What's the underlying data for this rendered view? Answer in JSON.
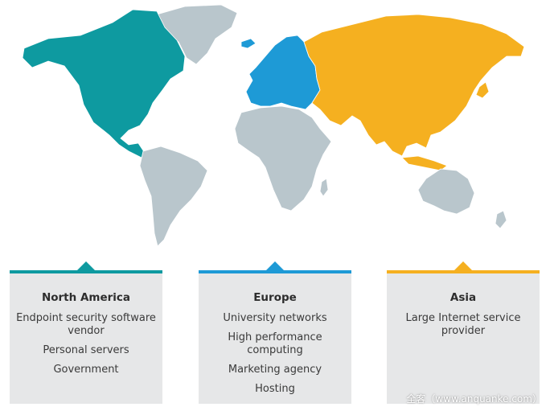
{
  "colors": {
    "north_america": "#0e9aa0",
    "europe": "#1e9ad6",
    "asia": "#f5b020",
    "other_land": "#b9c6cc",
    "panel_bg": "#e6e7e8"
  },
  "regions": [
    {
      "id": "north-america",
      "title": "North America",
      "items": [
        "Endpoint security software vendor",
        "Personal servers",
        "Government"
      ]
    },
    {
      "id": "europe",
      "title": "Europe",
      "items": [
        "University networks",
        "High performance computing",
        "Marketing agency",
        "Hosting"
      ]
    },
    {
      "id": "asia",
      "title": "Asia",
      "items": [
        "Large Internet service provider"
      ]
    }
  ],
  "watermark": "全客（www.anquanke.com）"
}
